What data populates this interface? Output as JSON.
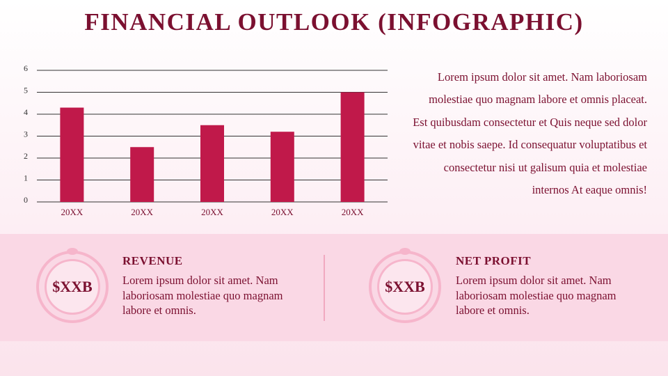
{
  "title": "FINANCIAL OUTLOOK (INFOGRAPHIC)",
  "chart_data": {
    "type": "bar",
    "categories": [
      "20XX",
      "20XX",
      "20XX",
      "20XX",
      "20XX"
    ],
    "values": [
      4.3,
      2.5,
      3.5,
      3.2,
      5.0
    ],
    "color": "#c0194a",
    "ylim": [
      0,
      6
    ],
    "yticks": [
      0,
      1,
      2,
      3,
      4,
      5,
      6
    ],
    "grid": true
  },
  "description": "Lorem ipsum dolor sit amet. Nam laboriosam molestiae quo magnam labore et omnis placeat. Est quibusdam consectetur et Quis neque sed dolor vitae et nobis saepe. Id consequatur voluptatibus et consectetur nisi ut galisum quia et molestiae internos At eaque omnis!",
  "cards": [
    {
      "value": "$XXB",
      "heading": "REVENUE",
      "text": "Lorem ipsum dolor sit amet. Nam laboriosam molestiae quo magnam labore et omnis."
    },
    {
      "value": "$XXB",
      "heading": "NET PROFIT",
      "text": "Lorem ipsum dolor sit amet. Nam laboriosam molestiae quo magnam labore et omnis."
    }
  ]
}
